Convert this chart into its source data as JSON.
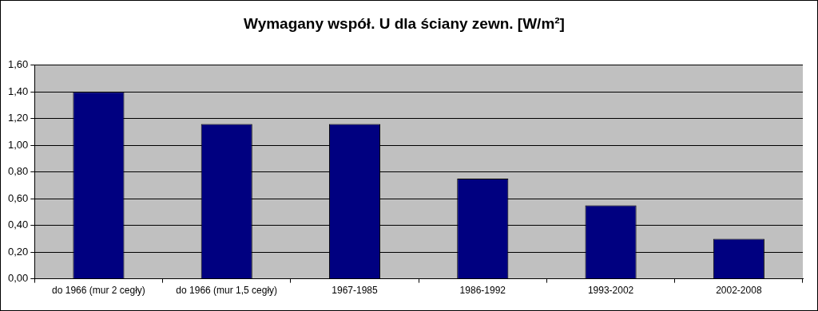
{
  "chart_data": {
    "type": "bar",
    "title": "Wymagany współ. U dla ściany zewn. [W/m²]",
    "categories": [
      "do 1966 (mur 2 cegły)",
      "do 1966 (mur 1,5 cegły)",
      "1967-1985",
      "1986-1992",
      "1993-2002",
      "2002-2008"
    ],
    "values": [
      1.4,
      1.16,
      1.16,
      0.75,
      0.55,
      0.3
    ],
    "color": "#000080",
    "ylim": [
      0,
      1.6
    ],
    "yticks": [
      {
        "value": 0,
        "label": "0,00"
      },
      {
        "value": 0.2,
        "label": "0,20"
      },
      {
        "value": 0.4,
        "label": "0,40"
      },
      {
        "value": 0.6,
        "label": "0,60"
      },
      {
        "value": 0.8,
        "label": "0,80"
      },
      {
        "value": 1.0,
        "label": "1,00"
      },
      {
        "value": 1.2,
        "label": "1,20"
      },
      {
        "value": 1.4,
        "label": "1,40"
      },
      {
        "value": 1.6,
        "label": "1,60"
      }
    ],
    "grid": "y",
    "legend": false
  }
}
